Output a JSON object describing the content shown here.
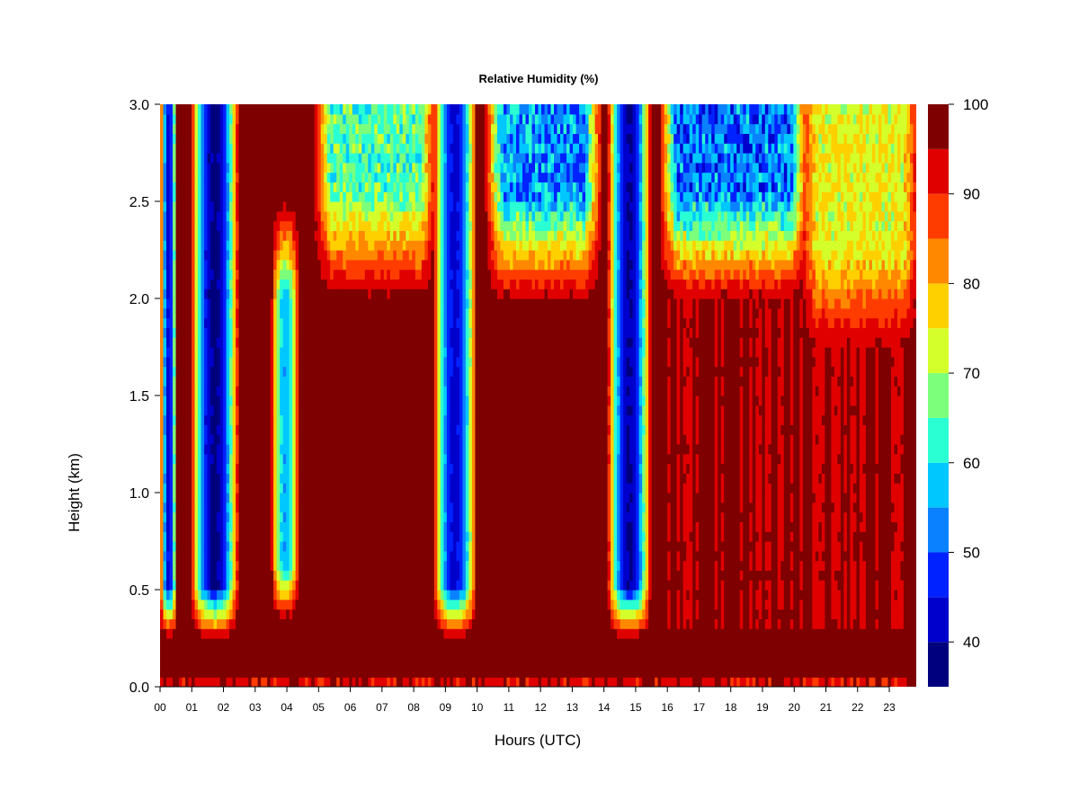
{
  "chart_data": {
    "type": "heatmap",
    "title": "Relative Humidity (%)",
    "xlabel": "Hours (UTC)",
    "ylabel": "Height (km)",
    "x_ticks": [
      "00",
      "01",
      "02",
      "03",
      "04",
      "05",
      "06",
      "07",
      "08",
      "09",
      "10",
      "11",
      "12",
      "13",
      "14",
      "15",
      "16",
      "17",
      "18",
      "19",
      "20",
      "21",
      "22",
      "23"
    ],
    "xlim": [
      0,
      23.85
    ],
    "y_ticks": [
      "0.0",
      "0.5",
      "1.0",
      "1.5",
      "2.0",
      "2.5",
      "3.0"
    ],
    "ylim": [
      0,
      3.0
    ],
    "colorbar": {
      "ticks": [
        "40",
        "50",
        "60",
        "70",
        "80",
        "90",
        "100"
      ],
      "range": [
        35,
        100
      ],
      "levels": [
        35,
        40,
        45,
        50,
        55,
        60,
        65,
        70,
        75,
        80,
        85,
        90,
        95,
        100
      ],
      "colors": [
        "#00007f",
        "#0000cd",
        "#0022ff",
        "#0a82ff",
        "#00c8ff",
        "#2affd4",
        "#7cff7a",
        "#d4ff2a",
        "#ffd000",
        "#ff8800",
        "#ff3c00",
        "#e00000",
        "#7f0000"
      ]
    },
    "features": [
      {
        "name": "surface moist layer",
        "x_range": [
          0,
          23.85
        ],
        "y_range": [
          0.0,
          0.3
        ],
        "rh": 98
      },
      {
        "name": "dry column",
        "x_range": [
          0.0,
          0.55
        ],
        "y_range": [
          0.4,
          3.0
        ],
        "rh_min": 45
      },
      {
        "name": "dry column",
        "x_range": [
          0.95,
          2.5
        ],
        "y_range": [
          0.4,
          3.0
        ],
        "rh_min": 40
      },
      {
        "name": "dry column",
        "x_range": [
          3.5,
          4.4
        ],
        "y_range": [
          0.5,
          2.5
        ],
        "rh_min": 58
      },
      {
        "name": "dry column",
        "x_range": [
          8.6,
          10.0
        ],
        "y_range": [
          0.4,
          3.0
        ],
        "rh_min": 45
      },
      {
        "name": "dry column",
        "x_range": [
          14.1,
          15.5
        ],
        "y_range": [
          0.4,
          3.0
        ],
        "rh_min": 42
      },
      {
        "name": "dry layer aloft",
        "x_range": [
          5.0,
          8.6
        ],
        "y_range": [
          2.0,
          3.0
        ],
        "rh_min": 62
      },
      {
        "name": "dry layer aloft",
        "x_range": [
          10.4,
          13.8
        ],
        "y_range": [
          2.0,
          3.0
        ],
        "rh_min": 50
      },
      {
        "name": "dry layer aloft",
        "x_range": [
          15.9,
          20.3
        ],
        "y_range": [
          2.0,
          3.0
        ],
        "rh_min": 48
      },
      {
        "name": "dry layer aloft",
        "x_range": [
          20.3,
          23.85
        ],
        "y_range": [
          1.7,
          3.0
        ],
        "rh_min": 72
      }
    ]
  }
}
